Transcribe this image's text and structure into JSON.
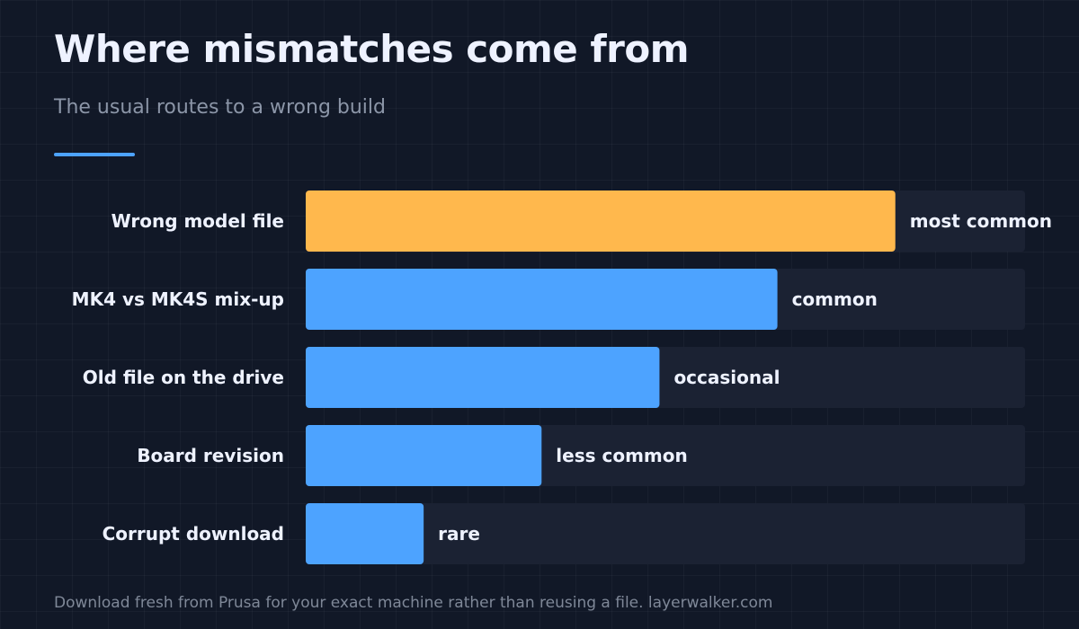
{
  "header": {
    "title": "Where mismatches come from",
    "subtitle": "The usual routes to a wrong build"
  },
  "footer": {
    "note": "Download fresh from Prusa for your exact machine rather than reusing a file. layerwalker.com"
  },
  "colors": {
    "accent": "#4da3ff",
    "highlight": "#ffb84d",
    "track": "#1b2233",
    "label_text": "#eef2ff"
  },
  "chart_data": {
    "type": "bar",
    "orientation": "horizontal",
    "categories": [
      "Wrong model file",
      "MK4 vs MK4S mix-up",
      "Old file on the drive",
      "Board revision",
      "Corrupt download"
    ],
    "values": [
      5,
      4,
      3,
      2,
      1
    ],
    "value_labels": [
      "most common",
      "common",
      "occasional",
      "less common",
      "rare"
    ],
    "highlight_index": 0,
    "xlim": [
      0,
      6.1
    ]
  }
}
